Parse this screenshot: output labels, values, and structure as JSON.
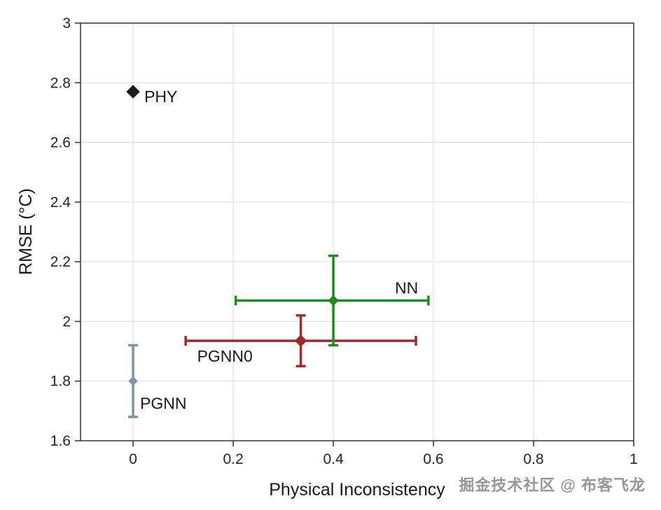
{
  "watermark": "掘金技术社区 @ 布客飞龙",
  "chart_data": {
    "type": "scatter",
    "title": "",
    "xlabel": "Physical Inconsistency",
    "ylabel": "RMSE (°C)",
    "xlim": [
      -0.105,
      1
    ],
    "ylim": [
      1.6,
      3
    ],
    "grid": true,
    "legend": "none",
    "xticks": [
      {
        "v": 0,
        "label": "0"
      },
      {
        "v": 0.2,
        "label": "0.2"
      },
      {
        "v": 0.4,
        "label": "0.4"
      },
      {
        "v": 0.6,
        "label": "0.6"
      },
      {
        "v": 0.8,
        "label": "0.8"
      },
      {
        "v": 1,
        "label": "1"
      }
    ],
    "yticks": [
      {
        "v": 1.6,
        "label": "1.6"
      },
      {
        "v": 1.8,
        "label": "1.8"
      },
      {
        "v": 2,
        "label": "2"
      },
      {
        "v": 2.2,
        "label": "2.2"
      },
      {
        "v": 2.4,
        "label": "2.4"
      },
      {
        "v": 2.6,
        "label": "2.6"
      },
      {
        "v": 2.8,
        "label": "2.8"
      },
      {
        "v": 3,
        "label": "3"
      }
    ],
    "series": [
      {
        "name": "PHY",
        "x": 0,
        "y": 2.77,
        "color": "#1a1a1a",
        "marker_size": 9,
        "label_dx": 16,
        "label_dy": 15
      },
      {
        "name": "PGNN",
        "x": 0,
        "y": 1.8,
        "yerr": [
          1.68,
          1.92
        ],
        "color": "#7b96a6",
        "marker_size": 6,
        "label_dx": 10,
        "label_dy": 40
      },
      {
        "name": "PGNN0",
        "x": 0.335,
        "y": 1.935,
        "xerr": [
          0.105,
          0.565
        ],
        "yerr": [
          1.85,
          2.02
        ],
        "color": "#9e2b2b",
        "marker_size": 8,
        "label_dx": -148,
        "label_dy": 30
      },
      {
        "name": "NN",
        "x": 0.4,
        "y": 2.07,
        "xerr": [
          0.205,
          0.59
        ],
        "yerr": [
          1.92,
          2.22
        ],
        "color": "#1f8b1f",
        "marker_size": 7,
        "label_dx": 88,
        "label_dy": -10
      }
    ]
  }
}
